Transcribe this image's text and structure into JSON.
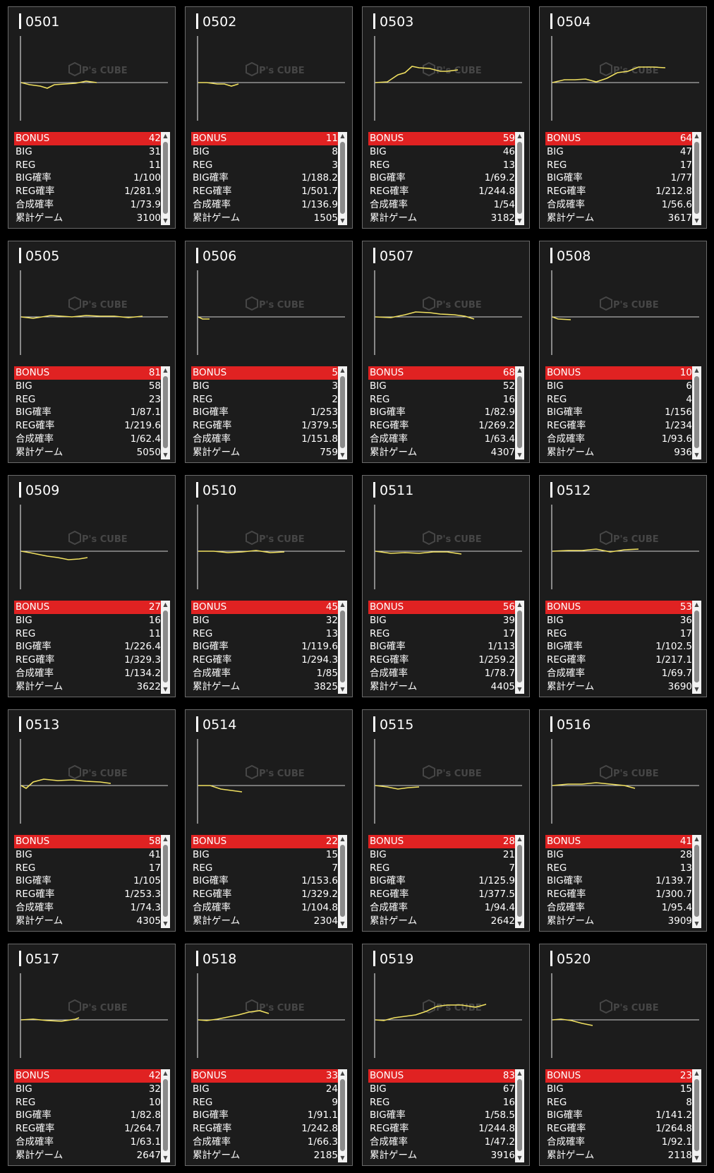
{
  "labels": {
    "bonus": "BONUS",
    "big": "BIG",
    "reg": "REG",
    "big_rate": "BIG確率",
    "reg_rate": "REG確率",
    "combined_rate": "合成確率",
    "total_games": "累計ゲーム"
  },
  "watermark": {
    "text": "P's CUBE"
  },
  "colors": {
    "line": "#f0e060",
    "bonus_bg": "#e02222",
    "card_bg": "#1c1c1c"
  },
  "machines": [
    {
      "id": "0501",
      "bonus": "42",
      "big": "31",
      "reg": "11",
      "big_rate": "1/100",
      "reg_rate": "1/281.9",
      "combined_rate": "1/73.9",
      "total_games": "3100"
    },
    {
      "id": "0502",
      "bonus": "11",
      "big": "8",
      "reg": "3",
      "big_rate": "1/188.2",
      "reg_rate": "1/501.7",
      "combined_rate": "1/136.9",
      "total_games": "1505"
    },
    {
      "id": "0503",
      "bonus": "59",
      "big": "46",
      "reg": "13",
      "big_rate": "1/69.2",
      "reg_rate": "1/244.8",
      "combined_rate": "1/54",
      "total_games": "3182"
    },
    {
      "id": "0504",
      "bonus": "64",
      "big": "47",
      "reg": "17",
      "big_rate": "1/77",
      "reg_rate": "1/212.8",
      "combined_rate": "1/56.6",
      "total_games": "3617"
    },
    {
      "id": "0505",
      "bonus": "81",
      "big": "58",
      "reg": "23",
      "big_rate": "1/87.1",
      "reg_rate": "1/219.6",
      "combined_rate": "1/62.4",
      "total_games": "5050"
    },
    {
      "id": "0506",
      "bonus": "5",
      "big": "3",
      "reg": "2",
      "big_rate": "1/253",
      "reg_rate": "1/379.5",
      "combined_rate": "1/151.8",
      "total_games": "759"
    },
    {
      "id": "0507",
      "bonus": "68",
      "big": "52",
      "reg": "16",
      "big_rate": "1/82.9",
      "reg_rate": "1/269.2",
      "combined_rate": "1/63.4",
      "total_games": "4307"
    },
    {
      "id": "0508",
      "bonus": "10",
      "big": "6",
      "reg": "4",
      "big_rate": "1/156",
      "reg_rate": "1/234",
      "combined_rate": "1/93.6",
      "total_games": "936"
    },
    {
      "id": "0509",
      "bonus": "27",
      "big": "16",
      "reg": "11",
      "big_rate": "1/226.4",
      "reg_rate": "1/329.3",
      "combined_rate": "1/134.2",
      "total_games": "3622"
    },
    {
      "id": "0510",
      "bonus": "45",
      "big": "32",
      "reg": "13",
      "big_rate": "1/119.6",
      "reg_rate": "1/294.3",
      "combined_rate": "1/85",
      "total_games": "3825"
    },
    {
      "id": "0511",
      "bonus": "56",
      "big": "39",
      "reg": "17",
      "big_rate": "1/113",
      "reg_rate": "1/259.2",
      "combined_rate": "1/78.7",
      "total_games": "4405"
    },
    {
      "id": "0512",
      "bonus": "53",
      "big": "36",
      "reg": "17",
      "big_rate": "1/102.5",
      "reg_rate": "1/217.1",
      "combined_rate": "1/69.7",
      "total_games": "3690"
    },
    {
      "id": "0513",
      "bonus": "58",
      "big": "41",
      "reg": "17",
      "big_rate": "1/105",
      "reg_rate": "1/253.3",
      "combined_rate": "1/74.3",
      "total_games": "4305"
    },
    {
      "id": "0514",
      "bonus": "22",
      "big": "15",
      "reg": "7",
      "big_rate": "1/153.6",
      "reg_rate": "1/329.2",
      "combined_rate": "1/104.8",
      "total_games": "2304"
    },
    {
      "id": "0515",
      "bonus": "28",
      "big": "21",
      "reg": "7",
      "big_rate": "1/125.9",
      "reg_rate": "1/377.5",
      "combined_rate": "1/94.4",
      "total_games": "2642"
    },
    {
      "id": "0516",
      "bonus": "41",
      "big": "28",
      "reg": "13",
      "big_rate": "1/139.7",
      "reg_rate": "1/300.7",
      "combined_rate": "1/95.4",
      "total_games": "3909"
    },
    {
      "id": "0517",
      "bonus": "42",
      "big": "32",
      "reg": "10",
      "big_rate": "1/82.8",
      "reg_rate": "1/264.7",
      "combined_rate": "1/63.1",
      "total_games": "2647"
    },
    {
      "id": "0518",
      "bonus": "33",
      "big": "24",
      "reg": "9",
      "big_rate": "1/91.1",
      "reg_rate": "1/242.8",
      "combined_rate": "1/66.3",
      "total_games": "2185"
    },
    {
      "id": "0519",
      "bonus": "83",
      "big": "67",
      "reg": "16",
      "big_rate": "1/58.5",
      "reg_rate": "1/244.8",
      "combined_rate": "1/47.2",
      "total_games": "3916"
    },
    {
      "id": "0520",
      "bonus": "23",
      "big": "15",
      "reg": "8",
      "big_rate": "1/141.2",
      "reg_rate": "1/264.8",
      "combined_rate": "1/92.1",
      "total_games": "2118"
    }
  ]
}
